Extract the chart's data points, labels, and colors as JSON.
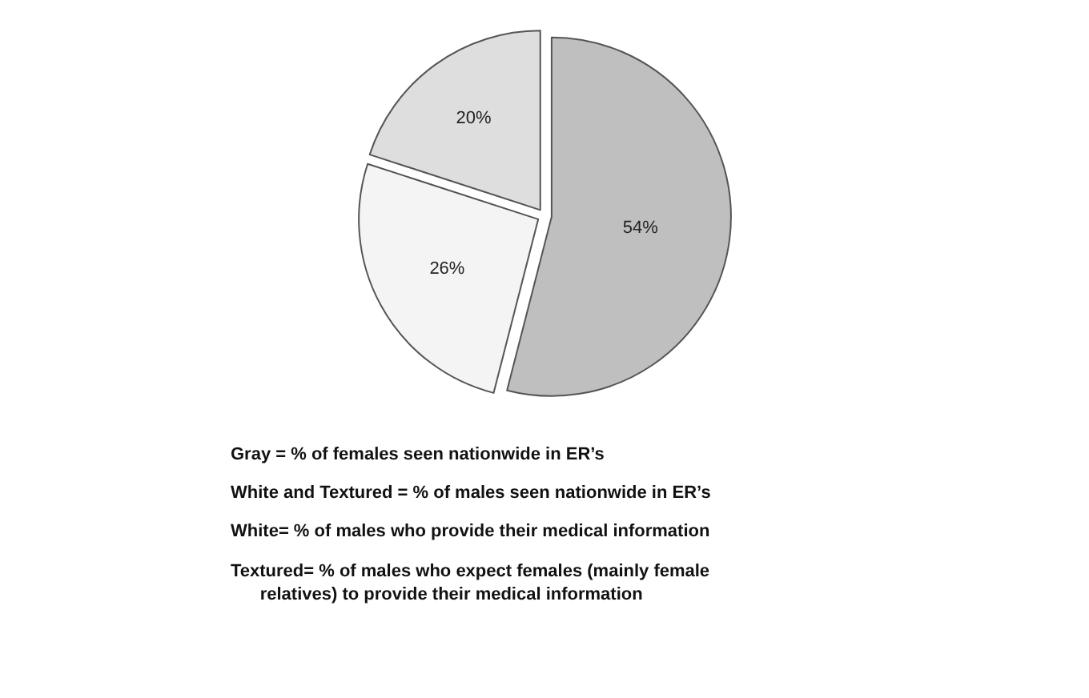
{
  "chart_data": {
    "type": "pie",
    "categories": [
      null,
      null,
      null
    ],
    "values": [
      54,
      26,
      20
    ],
    "colors": [
      "#bfbfbf",
      "#f4f4f4",
      "#dedede"
    ],
    "value_labels": [
      "54%",
      "26%",
      "20%"
    ],
    "annotations": [
      "Gray = % of females seen nationwide in ER’s",
      "White and Textured = % of males seen nationwide in ER’s",
      "White= % of males who provide their medical information",
      "Textured= % of males who expect females (mainly female relatives) to provide their medical information"
    ],
    "legend": false
  }
}
